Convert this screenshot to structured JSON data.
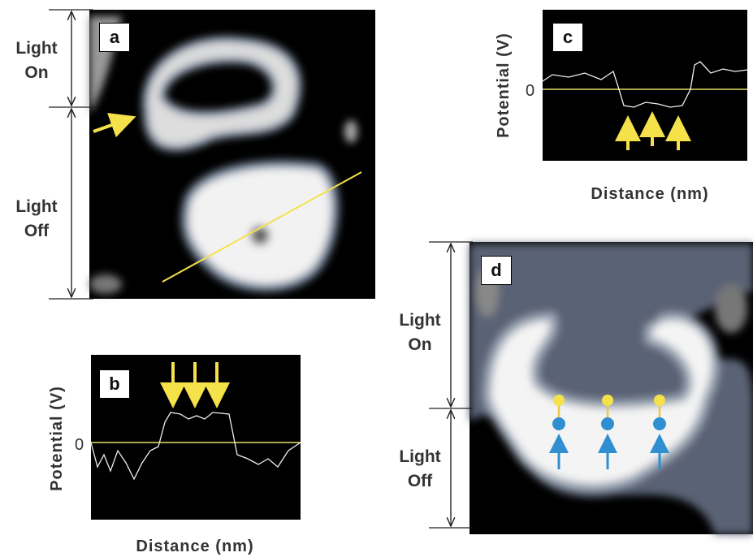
{
  "panels": [
    {
      "label": "a",
      "annotations": [
        "Light On",
        "Light Off"
      ]
    },
    {
      "label": "b",
      "y_label": "Potential (V)",
      "x_label": "Distance (nm)",
      "zero_label": "0"
    },
    {
      "label": "c",
      "y_label": "Potential (V)",
      "x_label": "Distance (nm)",
      "zero_label": "0"
    },
    {
      "label": "d",
      "annotations": [
        "Light On",
        "Light Off"
      ]
    }
  ]
}
